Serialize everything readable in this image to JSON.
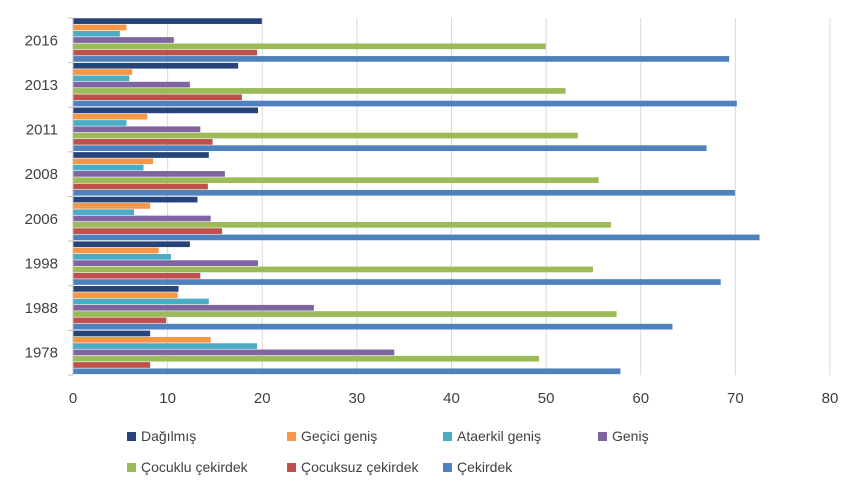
{
  "chart_data": {
    "type": "bar",
    "orientation": "horizontal",
    "categories": [
      "1978",
      "1988",
      "1998",
      "2006",
      "2008",
      "2011",
      "2013",
      "2016"
    ],
    "xlim": [
      0,
      80
    ],
    "xticks": [
      0,
      10,
      20,
      30,
      40,
      50,
      60,
      70,
      80
    ],
    "grid": true,
    "legend_position": "bottom",
    "series": [
      {
        "name": "Dağılmış",
        "color": "#264478",
        "values": [
          8.1,
          11.1,
          12.3,
          13.1,
          14.3,
          19.5,
          17.4,
          19.9
        ]
      },
      {
        "name": "Geçici geniş",
        "color": "#F79646",
        "values": [
          14.5,
          11.0,
          9.0,
          8.1,
          8.4,
          7.8,
          6.2,
          5.6
        ]
      },
      {
        "name": "Ataerkil geniş",
        "color": "#4BACC6",
        "values": [
          19.4,
          14.3,
          10.3,
          6.4,
          7.4,
          5.6,
          5.9,
          4.9
        ]
      },
      {
        "name": "Geniş",
        "color": "#8064A2",
        "values": [
          33.9,
          25.4,
          19.5,
          14.5,
          16.0,
          13.4,
          12.3,
          10.6
        ]
      },
      {
        "name": "Çocuklu çekirdek",
        "color": "#9BBB59",
        "values": [
          49.2,
          57.4,
          54.9,
          56.8,
          55.5,
          53.3,
          52.0,
          49.9
        ]
      },
      {
        "name": "Çocuksuz çekirdek",
        "color": "#C0504D",
        "values": [
          8.1,
          9.8,
          13.4,
          15.7,
          14.2,
          14.7,
          17.8,
          19.4
        ]
      },
      {
        "name": "Çekirdek",
        "color": "#4F81BD",
        "values": [
          57.8,
          63.3,
          68.4,
          72.5,
          69.9,
          66.9,
          70.1,
          69.3
        ]
      }
    ],
    "legend_order": [
      "Dağılmış",
      "Geçici geniş",
      "Ataerkil geniş",
      "Geniş",
      "Çocuklu çekirdek",
      "Çocuksuz çekirdek",
      "Çekirdek"
    ]
  }
}
